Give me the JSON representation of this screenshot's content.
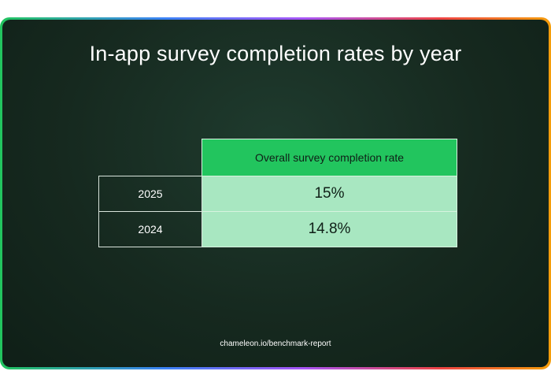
{
  "title": "In-app survey completion rates by year",
  "footer": "chameleon.io/benchmark-report",
  "colors": {
    "header_bg": "#22c55e",
    "value_bg": "#a8e7c1",
    "card_bg": "#16291f"
  },
  "chart_data": {
    "type": "table",
    "title": "In-app survey completion rates by year",
    "columns": [
      "",
      "Overall survey completion rate"
    ],
    "rows": [
      {
        "label": "2025",
        "value": "15%"
      },
      {
        "label": "2024",
        "value": "14.8%"
      }
    ]
  }
}
